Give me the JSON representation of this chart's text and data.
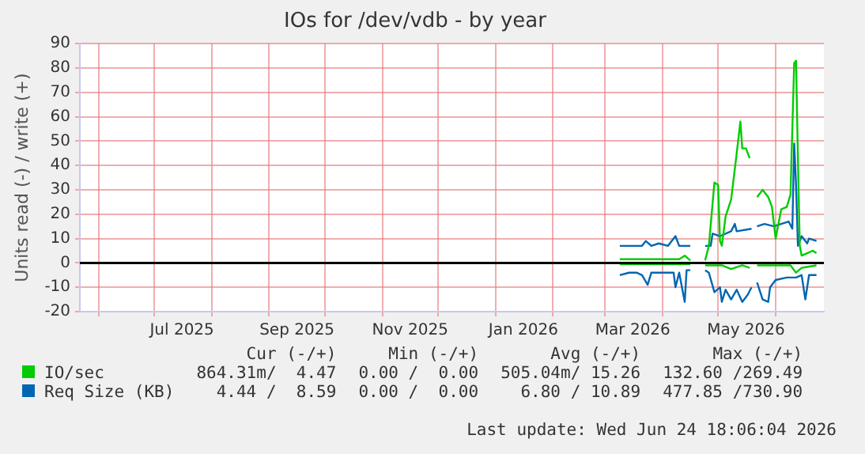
{
  "chart_data": {
    "type": "line",
    "title": "IOs for /dev/vdb - by year",
    "ylabel": "Units read (-) / write (+)",
    "xlim": [
      "2025-05-22",
      "2026-06-27"
    ],
    "xticks": [
      {
        "value": "2025-06-01",
        "label": null
      },
      {
        "value": "2025-07-01",
        "label": null
      },
      {
        "value": "2025-07-16",
        "label": "Jul 2025"
      },
      {
        "value": "2025-08-01",
        "label": null
      },
      {
        "value": "2025-09-01",
        "label": null
      },
      {
        "value": "2025-09-16",
        "label": "Sep 2025"
      },
      {
        "value": "2025-10-01",
        "label": null
      },
      {
        "value": "2025-11-01",
        "label": null
      },
      {
        "value": "2025-11-16",
        "label": "Nov 2025"
      },
      {
        "value": "2025-12-01",
        "label": null
      },
      {
        "value": "2026-01-01",
        "label": null
      },
      {
        "value": "2026-01-16",
        "label": "Jan 2026"
      },
      {
        "value": "2026-02-01",
        "label": null
      },
      {
        "value": "2026-03-01",
        "label": null
      },
      {
        "value": "2026-03-16",
        "label": "Mar 2026"
      },
      {
        "value": "2026-04-01",
        "label": null
      },
      {
        "value": "2026-05-01",
        "label": null
      },
      {
        "value": "2026-05-16",
        "label": "May 2026"
      },
      {
        "value": "2026-06-01",
        "label": null
      }
    ],
    "ylim": [
      -20,
      90
    ],
    "yticks": [
      -20,
      -10,
      0,
      10,
      20,
      30,
      40,
      50,
      60,
      70,
      80,
      90
    ],
    "grid": true,
    "legend": "bottom",
    "marker": "none",
    "line_style": "solid",
    "ref_lines": [
      {
        "axis": "y",
        "value": 0,
        "color": "#000000"
      }
    ],
    "series": [
      {
        "name": "IO/sec",
        "color": "#00cc00",
        "x": [
          "2026-03-09",
          "2026-04-10",
          "2026-04-13",
          "2026-04-16",
          "2026-04-20",
          "2026-04-24",
          "2026-04-26",
          "2026-04-29",
          "2026-05-01",
          "2026-05-02",
          "2026-05-03",
          "2026-05-05",
          "2026-05-08",
          "2026-05-11",
          "2026-05-13",
          "2026-05-14",
          "2026-05-16",
          "2026-05-18",
          "2026-05-20",
          "2026-05-22",
          "2026-05-25",
          "2026-05-28",
          "2026-05-30",
          "2026-06-01",
          "2026-06-04",
          "2026-06-07",
          "2026-06-09",
          "2026-06-11",
          "2026-06-12",
          "2026-06-13",
          "2026-06-14",
          "2026-06-15",
          "2026-06-18",
          "2026-06-21",
          "2026-06-23"
        ],
        "values": [
          1.5,
          1.5,
          3,
          1,
          null,
          1,
          7,
          33,
          32,
          9,
          7,
          19,
          26,
          45,
          58,
          47,
          47,
          43,
          null,
          27,
          30,
          27,
          23,
          10,
          22,
          23,
          28,
          82,
          83,
          43,
          7,
          3,
          4,
          5,
          4
        ]
      },
      {
        "color": "#00cc00",
        "x": [
          "2026-03-09",
          "2026-04-16",
          "2026-04-20",
          "2026-04-24",
          "2026-05-03",
          "2026-05-08",
          "2026-05-14",
          "2026-05-18",
          "2026-05-20",
          "2026-05-22",
          "2026-06-01",
          "2026-06-09",
          "2026-06-12",
          "2026-06-15",
          "2026-06-23"
        ],
        "values": [
          -0.5,
          -0.5,
          null,
          -1,
          -1,
          -2.5,
          -1,
          -2,
          null,
          -1,
          -1,
          -1,
          -4,
          -2,
          -1
        ]
      },
      {
        "name": "Req Size (KB)",
        "color": "#0066b3",
        "x": [
          "2026-03-09",
          "2026-03-21",
          "2026-03-23",
          "2026-03-26",
          "2026-03-30",
          "2026-04-04",
          "2026-04-08",
          "2026-04-10",
          "2026-04-16",
          "2026-04-20",
          "2026-04-24",
          "2026-04-27",
          "2026-04-28",
          "2026-05-02",
          "2026-05-08",
          "2026-05-10",
          "2026-05-11",
          "2026-05-19",
          "2026-05-20",
          "2026-05-22",
          "2026-05-26",
          "2026-05-31",
          "2026-06-04",
          "2026-06-08",
          "2026-06-10",
          "2026-06-11",
          "2026-06-12",
          "2026-06-13",
          "2026-06-15",
          "2026-06-18",
          "2026-06-19",
          "2026-06-23"
        ],
        "values": [
          7,
          7,
          9,
          7,
          8,
          7,
          11,
          7,
          7,
          null,
          7,
          7,
          12,
          11,
          13,
          16,
          13,
          14,
          null,
          15,
          16,
          15,
          16,
          17,
          14,
          49,
          32,
          7,
          11,
          8,
          10,
          9
        ]
      },
      {
        "color": "#0066b3",
        "x": [
          "2026-03-09",
          "2026-03-14",
          "2026-03-18",
          "2026-03-21",
          "2026-03-24",
          "2026-03-26",
          "2026-03-30",
          "2026-04-02",
          "2026-04-07",
          "2026-04-08",
          "2026-04-10",
          "2026-04-13",
          "2026-04-14",
          "2026-04-16",
          "2026-04-20",
          "2026-04-24",
          "2026-04-26",
          "2026-04-29",
          "2026-05-02",
          "2026-05-03",
          "2026-05-05",
          "2026-05-08",
          "2026-05-11",
          "2026-05-14",
          "2026-05-17",
          "2026-05-19",
          "2026-05-20",
          "2026-05-22",
          "2026-05-25",
          "2026-05-28",
          "2026-05-29",
          "2026-06-01",
          "2026-06-07",
          "2026-06-12",
          "2026-06-15",
          "2026-06-17",
          "2026-06-19",
          "2026-06-23"
        ],
        "values": [
          -5,
          -4,
          -4,
          -5,
          -9,
          -4,
          -4,
          -4,
          -4,
          -10,
          -4,
          -16,
          -3,
          -3,
          null,
          -3,
          -4,
          -12,
          -10,
          -16,
          -11,
          -15,
          -11,
          -16,
          -13,
          -10,
          null,
          -8,
          -15,
          -16,
          -10,
          -7,
          -6,
          -6,
          -5,
          -15,
          -5,
          -5
        ]
      }
    ],
    "annotations": [
      "Cur (-/+)",
      "Min (-/+)",
      "Avg (-/+)",
      "Max (-/+)",
      "864.31m/  4.47",
      "0.00 /  0.00",
      "505.04m/ 15.26",
      "132.60 /269.49",
      "4.44 /  8.59",
      "0.00 /  0.00",
      "6.80 / 10.89",
      "477.85 /730.90",
      "Last update: Wed Jun 24 18:06:04 2026"
    ]
  }
}
